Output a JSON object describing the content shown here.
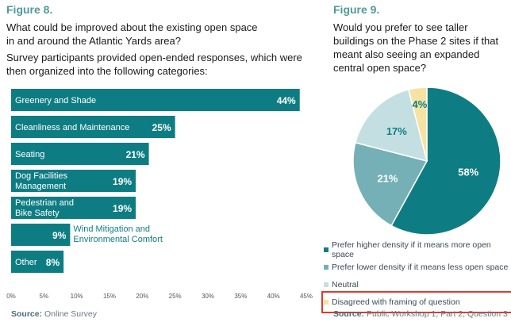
{
  "figure8": {
    "label": "Figure 8.",
    "question": "What could be improved about the existing open space in and around the Atlantic Yards area?",
    "subtitle": "Survey participants provided open-ended responses, which were then organized into the following categories:",
    "source_label": "Source:",
    "source_text": "Online Survey"
  },
  "figure9": {
    "label": "Figure 9.",
    "question": "Would you prefer to see taller buildings on the Phase 2 sites if that meant also seeing an expanded central open space?",
    "source_label": "Source:",
    "source_text": "Public Workshop 1, Part 2, Question 3"
  },
  "colors": {
    "bar": "#0e7d83",
    "pie": [
      "#0e7d83",
      "#74b0b6",
      "#c4dfe2",
      "#f6e3a4"
    ],
    "highlight": "#e03a2b"
  },
  "chart_data": [
    {
      "type": "bar",
      "orientation": "horizontal",
      "categories": [
        "Greenery and Shade",
        "Cleanliness and Maintenance",
        "Seating",
        "Dog Facilities Management",
        "Pedestrian and Bike Safety",
        "Wind Mitigation and Environmental Comfort",
        "Other"
      ],
      "values": [
        44,
        25,
        21,
        19,
        19,
        9,
        8
      ],
      "value_labels": [
        "44%",
        "25%",
        "21%",
        "19%",
        "19%",
        "9%",
        "8%"
      ],
      "xlim": [
        0,
        45
      ],
      "xticks": [
        "0%",
        "5%",
        "10%",
        "15%",
        "20%",
        "25%",
        "30%",
        "35%",
        "40%",
        "45%"
      ]
    },
    {
      "type": "pie",
      "labels": [
        "Prefer higher density if it means more open space",
        "Prefer lower density if it means less open space",
        "Neutral",
        "Disagreed with framing of question"
      ],
      "values": [
        58,
        21,
        17,
        4
      ],
      "value_labels": [
        "58%",
        "21%",
        "17%",
        "4%"
      ]
    }
  ]
}
